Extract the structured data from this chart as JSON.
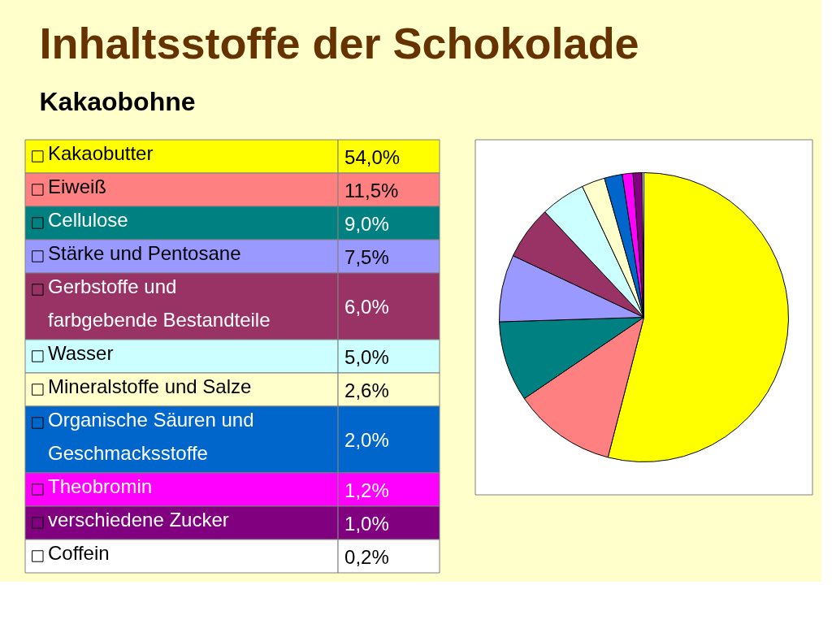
{
  "chart_data": {
    "type": "pie",
    "title": "Inhaltsstoffe der Schokolade",
    "subtitle": "Kakaobohne",
    "categories": [
      "Kakaobutter",
      "Eiweiß",
      "Cellulose",
      "Stärke und Pentosane",
      "Gerbstoffe und farbgebende Bestandteile",
      "Wasser",
      "Mineralstoffe und Salze",
      "Organische Säuren und Geschmacksstoffe",
      "Theobromin",
      "verschiedene Zucker",
      "Coffein"
    ],
    "values": [
      54.0,
      11.5,
      9.0,
      7.5,
      6.0,
      5.0,
      2.6,
      2.0,
      1.2,
      1.0,
      0.2
    ],
    "value_labels": [
      "54,0%",
      "11,5%",
      "9,0%",
      "7,5%",
      "6,0%",
      "5,0%",
      "2,6%",
      "2,0%",
      "1,2%",
      "1,0%",
      "0,2%"
    ],
    "colors": [
      "#ffff00",
      "#ff8080",
      "#008080",
      "#9999ff",
      "#993366",
      "#ccffff",
      "#ffffcc",
      "#0066cc",
      "#ff00ff",
      "#800080",
      "#ffffff"
    ],
    "legend": "left"
  }
}
